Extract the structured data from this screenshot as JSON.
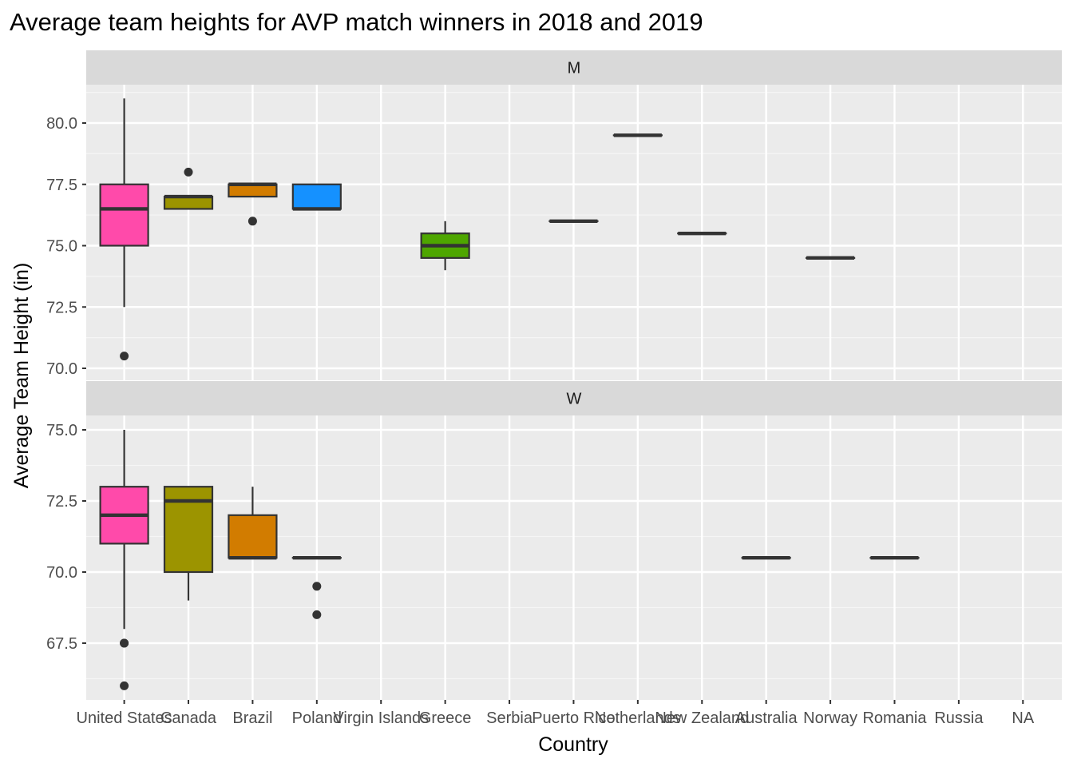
{
  "chart_data": {
    "type": "boxplot",
    "title": "Average team heights for AVP match winners in 2018 and 2019",
    "xlabel": "Country",
    "ylabel": "Average Team Height (in)",
    "categories": [
      "United States",
      "Canada",
      "Brazil",
      "Poland",
      "Virgin Islands",
      "Greece",
      "Serbia",
      "Puerto Rico",
      "Netherlands",
      "New Zealand",
      "Australia",
      "Norway",
      "Romania",
      "Russia",
      "NA"
    ],
    "colors": {
      "United States": "#ff4aaa",
      "Canada": "#9c9400",
      "Brazil": "#d27c00",
      "Poland": "#1591ff",
      "Greece": "#4ea600"
    },
    "panels": [
      {
        "label": "M",
        "ylim": [
          70,
          81.5
        ],
        "yticks": [
          "70.0",
          "72.5",
          "75.0",
          "77.5",
          "80.0"
        ],
        "boxes": [
          {
            "category": "United States",
            "whisker_low": 72.5,
            "q1": 75.0,
            "median": 76.5,
            "q3": 77.5,
            "whisker_high": 81.0,
            "outliers": [
              70.5
            ]
          },
          {
            "category": "Canada",
            "whisker_low": 76.5,
            "q1": 76.5,
            "median": 77.0,
            "q3": 77.0,
            "whisker_high": 77.0,
            "outliers": [
              78.0
            ]
          },
          {
            "category": "Brazil",
            "whisker_low": 77.0,
            "q1": 77.0,
            "median": 77.5,
            "q3": 77.5,
            "whisker_high": 77.5,
            "outliers": [
              76.0
            ]
          },
          {
            "category": "Poland",
            "whisker_low": 76.5,
            "q1": 76.5,
            "median": 76.5,
            "q3": 77.5,
            "whisker_high": 77.5,
            "outliers": []
          },
          {
            "category": "Greece",
            "whisker_low": 74.0,
            "q1": 74.5,
            "median": 75.0,
            "q3": 75.5,
            "whisker_high": 76.0,
            "outliers": []
          },
          {
            "category": "Puerto Rico",
            "whisker_low": 76.0,
            "q1": 76.0,
            "median": 76.0,
            "q3": 76.0,
            "whisker_high": 76.0,
            "outliers": []
          },
          {
            "category": "Netherlands",
            "whisker_low": 79.5,
            "q1": 79.5,
            "median": 79.5,
            "q3": 79.5,
            "whisker_high": 79.5,
            "outliers": []
          },
          {
            "category": "New Zealand",
            "whisker_low": 75.5,
            "q1": 75.5,
            "median": 75.5,
            "q3": 75.5,
            "whisker_high": 75.5,
            "outliers": []
          },
          {
            "category": "Norway",
            "whisker_low": 74.5,
            "q1": 74.5,
            "median": 74.5,
            "q3": 74.5,
            "whisker_high": 74.5,
            "outliers": []
          }
        ]
      },
      {
        "label": "W",
        "ylim": [
          65.5,
          76
        ],
        "yticks": [
          "67.5",
          "70.0",
          "72.5",
          "75.0"
        ],
        "boxes": [
          {
            "category": "United States",
            "whisker_low": 68.0,
            "q1": 71.0,
            "median": 72.0,
            "q3": 73.0,
            "whisker_high": 75.0,
            "outliers": [
              67.5,
              67.5,
              66.0
            ]
          },
          {
            "category": "Canada",
            "whisker_low": 69.0,
            "q1": 70.0,
            "median": 72.5,
            "q3": 73.0,
            "whisker_high": 73.0,
            "outliers": []
          },
          {
            "category": "Brazil",
            "whisker_low": 70.5,
            "q1": 70.5,
            "median": 70.5,
            "q3": 72.0,
            "whisker_high": 73.0,
            "outliers": []
          },
          {
            "category": "Poland",
            "whisker_low": 70.5,
            "q1": 70.5,
            "median": 70.5,
            "q3": 70.5,
            "whisker_high": 70.5,
            "outliers": [
              69.5,
              68.5
            ]
          },
          {
            "category": "Australia",
            "whisker_low": 70.5,
            "q1": 70.5,
            "median": 70.5,
            "q3": 70.5,
            "whisker_high": 70.5,
            "outliers": []
          },
          {
            "category": "Romania",
            "whisker_low": 70.5,
            "q1": 70.5,
            "median": 70.5,
            "q3": 70.5,
            "whisker_high": 70.5,
            "outliers": []
          }
        ]
      }
    ]
  }
}
